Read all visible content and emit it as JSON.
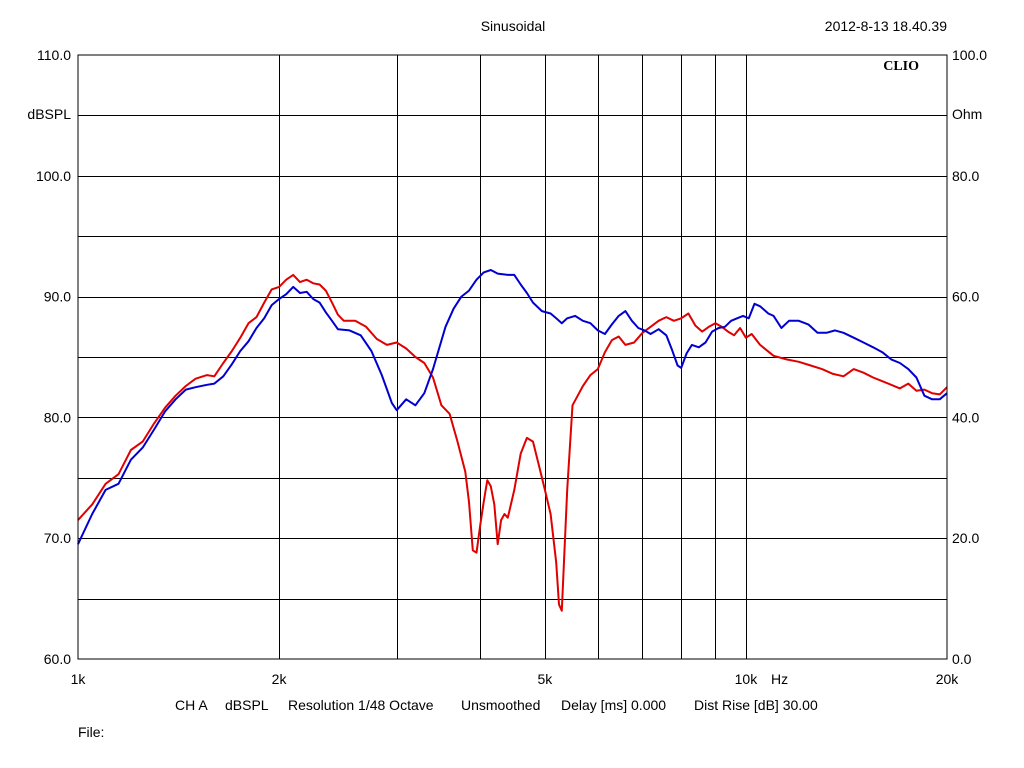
{
  "header": {
    "mode": "Sinusoidal",
    "timestamp": "2012-8-13 18.40.39",
    "brand": "CLIO"
  },
  "footer": {
    "channel": "CH A",
    "unit": "dBSPL",
    "resolution": "Resolution 1/48 Octave",
    "smoothing": "Unsmoothed",
    "delay": "Delay [ms] 0.000",
    "dist_rise": "Dist Rise [dB] 30.00",
    "file_label": "File:"
  },
  "chart_data": {
    "type": "line",
    "x_scale": "log",
    "xlim": [
      1000,
      20000
    ],
    "ylim": [
      60,
      110
    ],
    "y2lim": [
      0,
      100
    ],
    "ylabel": "dBSPL",
    "y2label": "Ohm",
    "xunit": "Hz",
    "grid": true,
    "y_ticks": [
      {
        "value": 60,
        "label": "60.0"
      },
      {
        "value": 70,
        "label": "70.0"
      },
      {
        "value": 80,
        "label": "80.0"
      },
      {
        "value": 90,
        "label": "90.0"
      },
      {
        "value": 100,
        "label": "100.0"
      },
      {
        "value": 110,
        "label": "110.0"
      }
    ],
    "y2_ticks": [
      {
        "value": 0,
        "label": "0.0"
      },
      {
        "value": 20,
        "label": "20.0"
      },
      {
        "value": 40,
        "label": "40.0"
      },
      {
        "value": 60,
        "label": "60.0"
      },
      {
        "value": 80,
        "label": "80.0"
      },
      {
        "value": 100,
        "label": "100.0"
      }
    ],
    "x_ticks": [
      {
        "value": 1000,
        "label": "1k"
      },
      {
        "value": 2000,
        "label": "2k"
      },
      {
        "value": 5000,
        "label": "5k"
      },
      {
        "value": 10000,
        "label": "10k"
      },
      {
        "value": 20000,
        "label": "20k"
      }
    ],
    "series": [
      {
        "color": "#e00000",
        "points": [
          [
            1000,
            71.5
          ],
          [
            1050,
            72.8
          ],
          [
            1100,
            74.5
          ],
          [
            1150,
            75.3
          ],
          [
            1200,
            77.3
          ],
          [
            1250,
            78.0
          ],
          [
            1300,
            79.5
          ],
          [
            1350,
            80.8
          ],
          [
            1400,
            81.8
          ],
          [
            1450,
            82.6
          ],
          [
            1500,
            83.2
          ],
          [
            1560,
            83.5
          ],
          [
            1600,
            83.4
          ],
          [
            1650,
            84.5
          ],
          [
            1700,
            85.5
          ],
          [
            1750,
            86.6
          ],
          [
            1800,
            87.8
          ],
          [
            1850,
            88.3
          ],
          [
            1900,
            89.5
          ],
          [
            1950,
            90.6
          ],
          [
            2000,
            90.8
          ],
          [
            2050,
            91.4
          ],
          [
            2100,
            91.8
          ],
          [
            2150,
            91.2
          ],
          [
            2200,
            91.4
          ],
          [
            2250,
            91.1
          ],
          [
            2300,
            91.0
          ],
          [
            2350,
            90.5
          ],
          [
            2400,
            89.5
          ],
          [
            2450,
            88.5
          ],
          [
            2500,
            88.0
          ],
          [
            2600,
            88.0
          ],
          [
            2700,
            87.5
          ],
          [
            2800,
            86.5
          ],
          [
            2900,
            86.0
          ],
          [
            3000,
            86.2
          ],
          [
            3100,
            85.7
          ],
          [
            3200,
            85.0
          ],
          [
            3300,
            84.5
          ],
          [
            3400,
            83.3
          ],
          [
            3500,
            81.0
          ],
          [
            3600,
            80.3
          ],
          [
            3700,
            78.0
          ],
          [
            3800,
            75.5
          ],
          [
            3850,
            73.0
          ],
          [
            3900,
            69.0
          ],
          [
            3950,
            68.8
          ],
          [
            4000,
            71.0
          ],
          [
            4050,
            73.0
          ],
          [
            4100,
            74.8
          ],
          [
            4150,
            74.3
          ],
          [
            4200,
            72.8
          ],
          [
            4250,
            69.5
          ],
          [
            4300,
            71.5
          ],
          [
            4350,
            72.0
          ],
          [
            4400,
            71.7
          ],
          [
            4500,
            74.0
          ],
          [
            4600,
            77.0
          ],
          [
            4700,
            78.3
          ],
          [
            4800,
            78.0
          ],
          [
            4900,
            76.0
          ],
          [
            5000,
            74.0
          ],
          [
            5100,
            72.0
          ],
          [
            5200,
            68.0
          ],
          [
            5250,
            64.5
          ],
          [
            5300,
            64.0
          ],
          [
            5400,
            74.0
          ],
          [
            5500,
            81.0
          ],
          [
            5600,
            81.8
          ],
          [
            5700,
            82.6
          ],
          [
            5850,
            83.5
          ],
          [
            6000,
            84.0
          ],
          [
            6150,
            85.4
          ],
          [
            6300,
            86.4
          ],
          [
            6450,
            86.7
          ],
          [
            6600,
            86.0
          ],
          [
            6800,
            86.2
          ],
          [
            7000,
            87.0
          ],
          [
            7200,
            87.5
          ],
          [
            7400,
            88.0
          ],
          [
            7600,
            88.3
          ],
          [
            7800,
            88.0
          ],
          [
            8000,
            88.2
          ],
          [
            8200,
            88.6
          ],
          [
            8400,
            87.6
          ],
          [
            8600,
            87.1
          ],
          [
            8800,
            87.5
          ],
          [
            9000,
            87.8
          ],
          [
            9200,
            87.5
          ],
          [
            9400,
            87.1
          ],
          [
            9600,
            86.8
          ],
          [
            9800,
            87.4
          ],
          [
            10000,
            86.6
          ],
          [
            10200,
            86.9
          ],
          [
            10500,
            86.0
          ],
          [
            11000,
            85.1
          ],
          [
            11500,
            84.8
          ],
          [
            12000,
            84.6
          ],
          [
            12500,
            84.3
          ],
          [
            13000,
            84.0
          ],
          [
            13500,
            83.6
          ],
          [
            14000,
            83.4
          ],
          [
            14500,
            84.0
          ],
          [
            15000,
            83.7
          ],
          [
            15500,
            83.3
          ],
          [
            16000,
            83.0
          ],
          [
            16500,
            82.7
          ],
          [
            17000,
            82.4
          ],
          [
            17500,
            82.8
          ],
          [
            18000,
            82.2
          ],
          [
            18500,
            82.3
          ],
          [
            19000,
            82.0
          ],
          [
            19500,
            81.9
          ],
          [
            20000,
            82.5
          ]
        ]
      },
      {
        "color": "#0000d0",
        "points": [
          [
            1000,
            69.5
          ],
          [
            1050,
            72.0
          ],
          [
            1100,
            74.0
          ],
          [
            1150,
            74.5
          ],
          [
            1200,
            76.5
          ],
          [
            1250,
            77.5
          ],
          [
            1300,
            79.0
          ],
          [
            1350,
            80.5
          ],
          [
            1400,
            81.5
          ],
          [
            1450,
            82.3
          ],
          [
            1500,
            82.5
          ],
          [
            1560,
            82.7
          ],
          [
            1600,
            82.8
          ],
          [
            1650,
            83.4
          ],
          [
            1700,
            84.4
          ],
          [
            1750,
            85.5
          ],
          [
            1800,
            86.3
          ],
          [
            1850,
            87.4
          ],
          [
            1900,
            88.2
          ],
          [
            1950,
            89.3
          ],
          [
            2000,
            89.8
          ],
          [
            2050,
            90.2
          ],
          [
            2100,
            90.8
          ],
          [
            2150,
            90.3
          ],
          [
            2200,
            90.4
          ],
          [
            2250,
            89.8
          ],
          [
            2300,
            89.5
          ],
          [
            2350,
            88.7
          ],
          [
            2400,
            88.0
          ],
          [
            2450,
            87.3
          ],
          [
            2550,
            87.2
          ],
          [
            2650,
            86.8
          ],
          [
            2750,
            85.5
          ],
          [
            2850,
            83.5
          ],
          [
            2950,
            81.2
          ],
          [
            3000,
            80.6
          ],
          [
            3100,
            81.5
          ],
          [
            3200,
            81.0
          ],
          [
            3300,
            82.0
          ],
          [
            3400,
            84.0
          ],
          [
            3550,
            87.5
          ],
          [
            3650,
            89.0
          ],
          [
            3750,
            90.0
          ],
          [
            3850,
            90.5
          ],
          [
            3950,
            91.4
          ],
          [
            4050,
            92.0
          ],
          [
            4150,
            92.2
          ],
          [
            4250,
            91.9
          ],
          [
            4400,
            91.8
          ],
          [
            4500,
            91.8
          ],
          [
            4600,
            91.0
          ],
          [
            4700,
            90.3
          ],
          [
            4800,
            89.5
          ],
          [
            4950,
            88.8
          ],
          [
            5100,
            88.6
          ],
          [
            5200,
            88.2
          ],
          [
            5300,
            87.8
          ],
          [
            5400,
            88.2
          ],
          [
            5550,
            88.4
          ],
          [
            5700,
            88.0
          ],
          [
            5850,
            87.8
          ],
          [
            6000,
            87.2
          ],
          [
            6150,
            86.9
          ],
          [
            6300,
            87.7
          ],
          [
            6450,
            88.4
          ],
          [
            6600,
            88.8
          ],
          [
            6750,
            88.0
          ],
          [
            6900,
            87.4
          ],
          [
            7050,
            87.2
          ],
          [
            7200,
            86.9
          ],
          [
            7400,
            87.3
          ],
          [
            7600,
            86.8
          ],
          [
            7750,
            85.6
          ],
          [
            7900,
            84.3
          ],
          [
            8000,
            84.1
          ],
          [
            8150,
            85.3
          ],
          [
            8300,
            86.0
          ],
          [
            8500,
            85.8
          ],
          [
            8700,
            86.2
          ],
          [
            8900,
            87.1
          ],
          [
            9100,
            87.4
          ],
          [
            9300,
            87.5
          ],
          [
            9500,
            88.0
          ],
          [
            9700,
            88.2
          ],
          [
            9900,
            88.4
          ],
          [
            10100,
            88.2
          ],
          [
            10300,
            89.4
          ],
          [
            10500,
            89.2
          ],
          [
            10800,
            88.6
          ],
          [
            11000,
            88.4
          ],
          [
            11300,
            87.4
          ],
          [
            11600,
            88.0
          ],
          [
            12000,
            88.0
          ],
          [
            12400,
            87.7
          ],
          [
            12800,
            87.0
          ],
          [
            13200,
            87.0
          ],
          [
            13600,
            87.2
          ],
          [
            14000,
            87.0
          ],
          [
            14500,
            86.6
          ],
          [
            15000,
            86.2
          ],
          [
            15500,
            85.8
          ],
          [
            16000,
            85.4
          ],
          [
            16500,
            84.8
          ],
          [
            17000,
            84.5
          ],
          [
            17500,
            84.0
          ],
          [
            18000,
            83.3
          ],
          [
            18500,
            81.8
          ],
          [
            19000,
            81.5
          ],
          [
            19500,
            81.5
          ],
          [
            20000,
            82.0
          ]
        ]
      }
    ]
  }
}
